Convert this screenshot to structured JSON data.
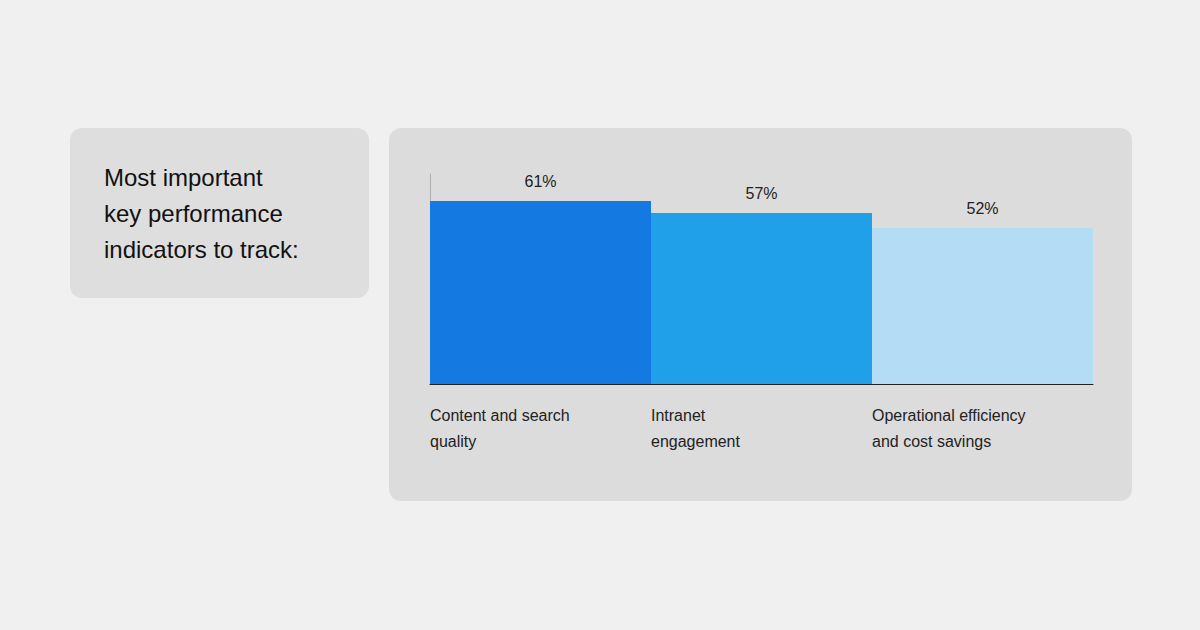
{
  "chart_data": {
    "type": "bar",
    "title": "Most important\nkey performance\nindicators to track:",
    "categories": [
      "Content and search\nquality",
      "Intranet\nengagement",
      "Operational efficiency\nand cost savings"
    ],
    "values": [
      61,
      57,
      52
    ],
    "value_labels": [
      "61%",
      "57%",
      "52%"
    ],
    "colors": [
      "#1479e0",
      "#1fa0e8",
      "#b5dcf5"
    ],
    "ylim": [
      0,
      70
    ],
    "grid": false,
    "data_labels": true,
    "tick_labels": "x"
  }
}
